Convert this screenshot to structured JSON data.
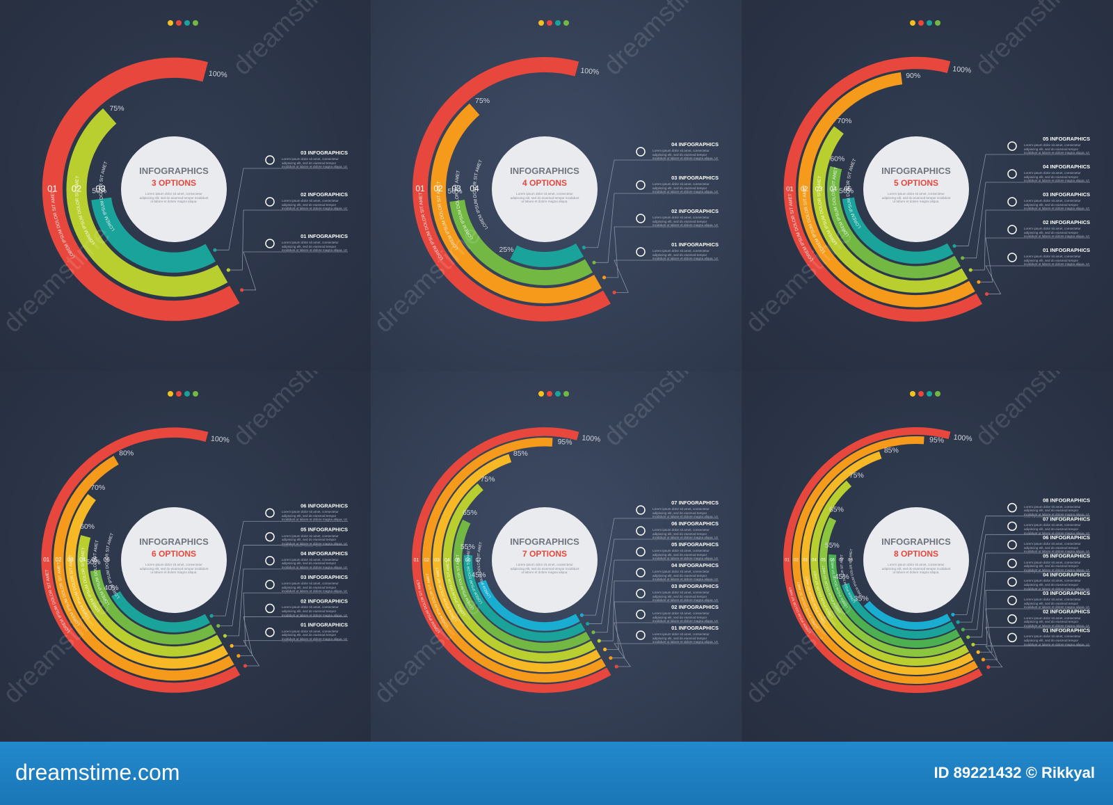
{
  "chart_data": [
    {
      "type": "radial_bar",
      "title": "INFOGRAPHICS",
      "subtitle": "3 OPTIONS",
      "description": "Lorem ipsum dolor sit amet, consectetur adipiscing elit, sed do eiusmod tempor incididunt ut labore et dolore magna aliqua.",
      "categories": [
        "01",
        "02",
        "03"
      ],
      "values": [
        100,
        75,
        50
      ],
      "value_labels": [
        "100%",
        "75%",
        "50%"
      ],
      "colors": [
        "#e8473e",
        "#b9cf2f",
        "#1aa39a"
      ],
      "ring_text": "LOREM IPSUM DOLOR SIT AMET",
      "legend": [
        "01 INFOGRAPHICS",
        "02 INFOGRAPHICS",
        "03 INFOGRAPHICS"
      ],
      "legend_text": "Lorem ipsum dolor sit amet, consectetur adipiscing elit, sed do eiusmod tempor incididunt ut labore et dolore magna aliqua. Ut enim ad minim veniam, quis"
    },
    {
      "type": "radial_bar",
      "title": "INFOGRAPHICS",
      "subtitle": "4 OPTIONS",
      "description": "Lorem ipsum dolor sit amet, consectetur adipiscing elit, sed do eiusmod tempor incididunt ut labore et dolore magna aliqua.",
      "categories": [
        "01",
        "02",
        "03",
        "04"
      ],
      "values": [
        100,
        75,
        50,
        25
      ],
      "value_labels": [
        "100%",
        "75%",
        "50%",
        "25%"
      ],
      "colors": [
        "#e8473e",
        "#f59a1b",
        "#72b843",
        "#1aa39a"
      ],
      "ring_text": "LOREM IPSUM DOLOR SIT AMET",
      "legend": [
        "01 INFOGRAPHICS",
        "02 INFOGRAPHICS",
        "03 INFOGRAPHICS",
        "04 INFOGRAPHICS"
      ],
      "legend_text": "Lorem ipsum dolor sit amet, consectetur adipiscing elit, sed do eiusmod tempor incididunt ut labore et dolore magna aliqua. Ut enim ad minim veniam, quis"
    },
    {
      "type": "radial_bar",
      "title": "INFOGRAPHICS",
      "subtitle": "5 OPTIONS",
      "description": "Lorem ipsum dolor sit amet, consectetur adipiscing elit, sed do eiusmod tempor incididunt ut labore et dolore magna aliqua.",
      "categories": [
        "01",
        "02",
        "03",
        "04",
        "05"
      ],
      "values": [
        100,
        90,
        70,
        60,
        50
      ],
      "value_labels": [
        "100%",
        "90%",
        "70%",
        "60%",
        "50%"
      ],
      "colors": [
        "#e8473e",
        "#f59a1b",
        "#b9cf2f",
        "#72b843",
        "#1aa39a"
      ],
      "ring_text": "LOREM IPSUM DOLOR SIT AMET",
      "legend": [
        "01 INFOGRAPHICS",
        "02 INFOGRAPHICS",
        "03 INFOGRAPHICS",
        "04 INFOGRAPHICS",
        "05 INFOGRAPHICS"
      ],
      "legend_text": "Lorem ipsum dolor sit amet, consectetur adipiscing elit, sed do eiusmod tempor incididunt ut labore et dolore magna aliqua. Ut enim ad minim veniam, quis"
    },
    {
      "type": "radial_bar",
      "title": "INFOGRAPHICS",
      "subtitle": "6 OPTIONS",
      "description": "Lorem ipsum dolor sit amet, consectetur adipiscing elit, sed do eiusmod tempor incididunt ut labore et dolore magna aliqua.",
      "categories": [
        "01",
        "02",
        "03",
        "04",
        "05",
        "06"
      ],
      "values": [
        100,
        80,
        70,
        60,
        50,
        40
      ],
      "value_labels": [
        "100%",
        "80%",
        "70%",
        "60%",
        "50%",
        "40%"
      ],
      "colors": [
        "#e8473e",
        "#f59a1b",
        "#f6b824",
        "#b9cf2f",
        "#72b843",
        "#1aa39a"
      ],
      "ring_text": "LOREM IPSUM DOLOR SIT AMET",
      "legend": [
        "01 INFOGRAPHICS",
        "02 INFOGRAPHICS",
        "03 INFOGRAPHICS",
        "04 INFOGRAPHICS",
        "05 INFOGRAPHICS",
        "06 INFOGRAPHICS"
      ],
      "legend_text": "Lorem ipsum dolor sit amet, consectetur adipiscing elit, sed do eiusmod tempor incididunt ut labore et dolore magna aliqua. Ut enim ad minim veniam, quis"
    },
    {
      "type": "radial_bar",
      "title": "INFOGRAPHICS",
      "subtitle": "7 OPTIONS",
      "description": "Lorem ipsum dolor sit amet, consectetur adipiscing elit, sed do eiusmod tempor incididunt ut labore et dolore magna aliqua.",
      "categories": [
        "01",
        "02",
        "03",
        "04",
        "05",
        "06",
        "07"
      ],
      "values": [
        100,
        95,
        85,
        75,
        65,
        55,
        45
      ],
      "value_labels": [
        "100%",
        "95%",
        "85%",
        "75%",
        "65%",
        "55%",
        "45%"
      ],
      "colors": [
        "#e8473e",
        "#f59a1b",
        "#f6b824",
        "#b9cf2f",
        "#72b843",
        "#1aa39a",
        "#19aed1"
      ],
      "ring_text": "LOREM IPSUM DOLOR SIT AMET",
      "legend": [
        "01 INFOGRAPHICS",
        "02 INFOGRAPHICS",
        "03 INFOGRAPHICS",
        "04 INFOGRAPHICS",
        "05 INFOGRAPHICS",
        "06 INFOGRAPHICS",
        "07 INFOGRAPHICS"
      ],
      "legend_text": "Lorem ipsum dolor sit amet, consectetur adipiscing elit, sed do eiusmod tempor incididunt ut labore et dolore magna aliqua. Ut enim ad minim veniam, quis"
    },
    {
      "type": "radial_bar",
      "title": "INFOGRAPHICS",
      "subtitle": "8 OPTIONS",
      "description": "Lorem ipsum dolor sit amet, consectetur adipiscing elit, sed do eiusmod tempor incididunt ut labore et dolore magna aliqua.",
      "categories": [
        "01",
        "02",
        "03",
        "04",
        "05",
        "06",
        "07",
        "08"
      ],
      "values": [
        100,
        95,
        85,
        75,
        65,
        55,
        45,
        35
      ],
      "value_labels": [
        "100%",
        "95%",
        "85%",
        "75%",
        "65%",
        "55%",
        "45%",
        "35%"
      ],
      "colors": [
        "#e8473e",
        "#f59a1b",
        "#f6b824",
        "#b9cf2f",
        "#8cc63f",
        "#4caf50",
        "#1aa39a",
        "#19aed1"
      ],
      "ring_text": "LOREM IPSUM DOLOR SIT AMET",
      "legend": [
        "01 INFOGRAPHICS",
        "02 INFOGRAPHICS",
        "03 INFOGRAPHICS",
        "04 INFOGRAPHICS",
        "05 INFOGRAPHICS",
        "06 INFOGRAPHICS",
        "07 INFOGRAPHICS",
        "08 INFOGRAPHICS"
      ],
      "legend_text": "Lorem ipsum dolor sit amet, consectetur adipiscing elit, sed do eiusmod tempor incididunt ut labore et dolore magna aliqua. Ut enim ad minim veniam, quis"
    }
  ],
  "watermark": "dreamstime",
  "footer": {
    "site": "dreamstime.com",
    "id": "ID 89221432 © Rikkyal"
  }
}
